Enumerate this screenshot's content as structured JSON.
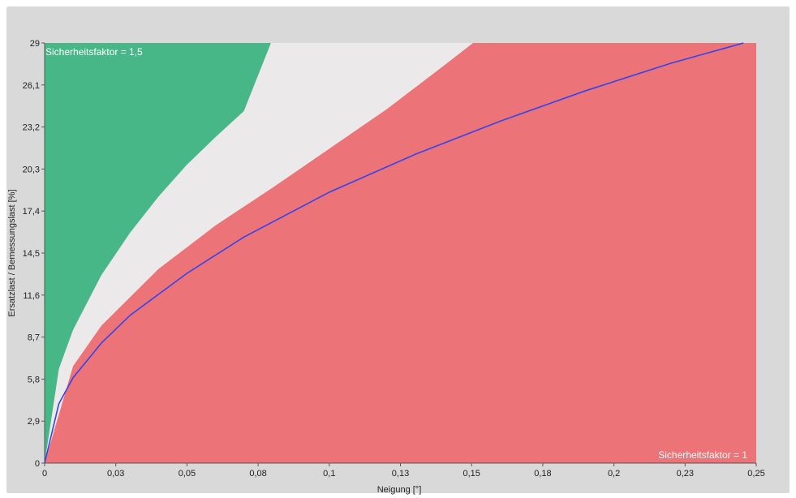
{
  "chart_data": {
    "type": "area",
    "xlabel": "Neigung [°]",
    "ylabel": "Ersatzlast / Bemessungslast [%]",
    "xlim": [
      0,
      0.25
    ],
    "ylim": [
      0,
      29
    ],
    "x_ticks": [
      "0",
      "0,03",
      "0,05",
      "0,08",
      "0,1",
      "0,13",
      "0,15",
      "0,18",
      "0,2",
      "0,23",
      "0,25"
    ],
    "y_ticks": [
      "0",
      "2,9",
      "5,8",
      "8,7",
      "11,6",
      "14,5",
      "17,4",
      "20,3",
      "23,2",
      "26,1",
      "29"
    ],
    "annotations": [
      {
        "text": "Sicherheitsfaktor = 1,5",
        "position": "top-left"
      },
      {
        "text": "Sicherheitsfaktor = 1",
        "position": "bottom-right"
      }
    ],
    "series": [
      {
        "type": "area",
        "color": "#48b787",
        "x": [
          0,
          0.005,
          0.01,
          0.02,
          0.03,
          0.04,
          0.05,
          0.06,
          0.07,
          0.0795
        ],
        "y": [
          0,
          6.5,
          9.2,
          13.0,
          15.9,
          18.4,
          20.6,
          22.5,
          24.3,
          29
        ]
      },
      {
        "type": "area",
        "color": "#ebe9e9",
        "x": [
          0,
          0.01,
          0.02,
          0.04,
          0.06,
          0.08,
          0.1,
          0.12,
          0.14,
          0.1505
        ],
        "y": [
          0,
          6.7,
          9.5,
          13.4,
          16.4,
          19.0,
          21.7,
          24.4,
          27.4,
          29
        ]
      },
      {
        "type": "area",
        "color": "#ec7377",
        "x": [
          0,
          0.25
        ],
        "y": [
          0,
          29
        ]
      },
      {
        "type": "line",
        "color": "#3344ee",
        "x": [
          0,
          0.005,
          0.01,
          0.02,
          0.03,
          0.05,
          0.07,
          0.1,
          0.13,
          0.16,
          0.19,
          0.22,
          0.2455
        ],
        "y": [
          0,
          4.1,
          5.9,
          8.3,
          10.2,
          13.1,
          15.6,
          18.7,
          21.3,
          23.6,
          25.7,
          27.6,
          29
        ]
      }
    ]
  }
}
